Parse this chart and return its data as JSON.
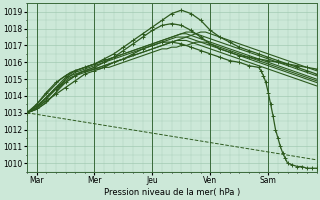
{
  "bg_color": "#cce8d8",
  "grid_color": "#99c4aa",
  "line_color": "#2d5a1e",
  "xlabel": "Pression niveau de la mer( hPa )",
  "ylim": [
    1009.5,
    1019.5
  ],
  "yticks": [
    1010,
    1011,
    1012,
    1013,
    1014,
    1015,
    1016,
    1017,
    1018,
    1019
  ],
  "xlim": [
    0,
    120
  ],
  "xtick_labels": [
    "Mar",
    "Mer",
    "Jeu",
    "Ven",
    "Sam"
  ],
  "xtick_positions": [
    4,
    28,
    52,
    76,
    100
  ],
  "vlines": [
    4,
    28,
    52,
    76,
    100
  ],
  "series": [
    {
      "x": [
        0,
        2,
        4,
        6,
        8,
        10,
        12,
        14,
        16,
        18,
        20,
        22,
        24,
        26,
        28,
        30,
        32,
        34,
        36,
        38,
        40,
        42,
        44,
        46,
        48,
        50,
        52,
        54,
        56,
        58,
        60,
        62,
        64,
        66,
        68,
        70,
        72,
        74,
        76,
        78,
        80,
        82,
        84,
        86,
        88,
        90,
        92,
        94,
        96,
        98,
        100,
        102,
        104,
        106,
        108,
        110,
        112,
        114,
        116,
        118,
        120
      ],
      "y": [
        1013.0,
        1013.1,
        1013.2,
        1013.4,
        1013.6,
        1013.9,
        1014.2,
        1014.5,
        1014.8,
        1015.0,
        1015.2,
        1015.4,
        1015.5,
        1015.6,
        1015.6,
        1015.7,
        1015.8,
        1015.9,
        1016.0,
        1016.1,
        1016.2,
        1016.3,
        1016.4,
        1016.5,
        1016.6,
        1016.7,
        1016.8,
        1016.9,
        1017.0,
        1017.1,
        1017.2,
        1017.3,
        1017.3,
        1017.3,
        1017.2,
        1017.1,
        1017.0,
        1016.9,
        1016.8,
        1016.7,
        1016.6,
        1016.5,
        1016.4,
        1016.3,
        1016.2,
        1016.1,
        1016.0,
        1015.9,
        1015.8,
        1015.7,
        1015.6,
        1015.5,
        1015.4,
        1015.3,
        1015.2,
        1015.1,
        1015.0,
        1014.9,
        1014.8,
        1014.7,
        1014.6
      ],
      "marker": false,
      "lw": 0.8
    },
    {
      "x": [
        0,
        2,
        4,
        6,
        8,
        10,
        12,
        14,
        16,
        18,
        20,
        22,
        24,
        26,
        28,
        30,
        32,
        34,
        36,
        38,
        40,
        42,
        44,
        46,
        48,
        50,
        52,
        54,
        56,
        58,
        60,
        62,
        64,
        66,
        68,
        70,
        72,
        74,
        76,
        78,
        80,
        82,
        84,
        86,
        88,
        90,
        92,
        94,
        96,
        98,
        100,
        102,
        104,
        106,
        108,
        110,
        112,
        114,
        116,
        118,
        120
      ],
      "y": [
        1013.0,
        1013.1,
        1013.2,
        1013.4,
        1013.6,
        1013.9,
        1014.2,
        1014.6,
        1015.0,
        1015.2,
        1015.4,
        1015.5,
        1015.6,
        1015.7,
        1015.8,
        1015.9,
        1016.0,
        1016.1,
        1016.2,
        1016.3,
        1016.4,
        1016.5,
        1016.6,
        1016.7,
        1016.8,
        1016.9,
        1017.0,
        1017.1,
        1017.2,
        1017.3,
        1017.4,
        1017.5,
        1017.5,
        1017.5,
        1017.4,
        1017.3,
        1017.2,
        1017.1,
        1017.0,
        1016.9,
        1016.8,
        1016.7,
        1016.6,
        1016.5,
        1016.4,
        1016.3,
        1016.2,
        1016.1,
        1016.0,
        1015.9,
        1015.8,
        1015.7,
        1015.6,
        1015.5,
        1015.4,
        1015.3,
        1015.2,
        1015.1,
        1015.0,
        1014.9,
        1014.8
      ],
      "marker": false,
      "lw": 0.8
    },
    {
      "x": [
        0,
        2,
        4,
        6,
        8,
        10,
        12,
        14,
        16,
        18,
        20,
        22,
        24,
        26,
        28,
        30,
        32,
        34,
        36,
        38,
        40,
        42,
        44,
        46,
        48,
        50,
        52,
        54,
        56,
        58,
        60,
        62,
        64,
        66,
        68,
        70,
        72,
        74,
        76,
        78,
        80,
        82,
        84,
        86,
        88,
        90,
        92,
        94,
        96,
        98,
        100,
        102,
        104,
        106,
        108,
        110,
        112,
        114,
        116,
        118,
        120
      ],
      "y": [
        1013.0,
        1013.2,
        1013.4,
        1013.6,
        1013.9,
        1014.2,
        1014.5,
        1014.8,
        1015.1,
        1015.3,
        1015.5,
        1015.6,
        1015.7,
        1015.8,
        1015.9,
        1016.0,
        1016.1,
        1016.2,
        1016.3,
        1016.4,
        1016.5,
        1016.6,
        1016.7,
        1016.8,
        1016.9,
        1017.0,
        1017.1,
        1017.2,
        1017.3,
        1017.4,
        1017.5,
        1017.6,
        1017.7,
        1017.7,
        1017.6,
        1017.5,
        1017.4,
        1017.3,
        1017.2,
        1017.1,
        1017.0,
        1016.9,
        1016.8,
        1016.7,
        1016.6,
        1016.5,
        1016.4,
        1016.3,
        1016.2,
        1016.1,
        1016.0,
        1015.9,
        1015.8,
        1015.7,
        1015.6,
        1015.5,
        1015.4,
        1015.3,
        1015.2,
        1015.1,
        1015.0
      ],
      "marker": false,
      "lw": 0.8
    },
    {
      "x": [
        0,
        2,
        4,
        6,
        8,
        10,
        12,
        14,
        16,
        18,
        20,
        22,
        24,
        26,
        28,
        30,
        32,
        34,
        36,
        38,
        40,
        42,
        44,
        46,
        48,
        50,
        52,
        54,
        56,
        58,
        60,
        62,
        64,
        66,
        68,
        70,
        72,
        74,
        76,
        78,
        80,
        82,
        84,
        86,
        88,
        90,
        92,
        94,
        96,
        98,
        100,
        102,
        104,
        106,
        108,
        110,
        112,
        114,
        116,
        118,
        120
      ],
      "y": [
        1013.0,
        1013.2,
        1013.5,
        1013.8,
        1014.1,
        1014.4,
        1014.7,
        1015.0,
        1015.2,
        1015.4,
        1015.5,
        1015.6,
        1015.7,
        1015.8,
        1015.9,
        1016.0,
        1016.1,
        1016.2,
        1016.3,
        1016.4,
        1016.5,
        1016.6,
        1016.7,
        1016.8,
        1016.9,
        1017.0,
        1017.1,
        1017.2,
        1017.3,
        1017.4,
        1017.5,
        1017.6,
        1017.7,
        1017.8,
        1017.8,
        1017.7,
        1017.6,
        1017.5,
        1017.4,
        1017.3,
        1017.2,
        1017.1,
        1017.0,
        1016.9,
        1016.8,
        1016.7,
        1016.6,
        1016.5,
        1016.4,
        1016.3,
        1016.2,
        1016.1,
        1016.0,
        1015.9,
        1015.8,
        1015.7,
        1015.6,
        1015.5,
        1015.4,
        1015.3,
        1015.2
      ],
      "marker": false,
      "lw": 0.8
    },
    {
      "x": [
        0,
        2,
        4,
        6,
        8,
        10,
        12,
        14,
        16,
        18,
        20,
        22,
        24,
        26,
        28,
        30,
        32,
        34,
        36,
        38,
        40,
        42,
        44,
        46,
        48,
        50,
        52,
        54,
        56,
        58,
        60,
        62,
        64,
        66,
        68,
        70,
        72,
        74,
        76,
        78,
        80,
        82,
        84,
        86,
        88,
        90,
        92,
        94,
        96,
        98,
        100,
        102,
        104,
        106,
        108,
        110,
        112,
        114,
        116,
        118,
        120
      ],
      "y": [
        1013.0,
        1013.1,
        1013.3,
        1013.6,
        1013.9,
        1014.2,
        1014.5,
        1014.7,
        1014.9,
        1015.1,
        1015.2,
        1015.3,
        1015.4,
        1015.5,
        1015.6,
        1015.7,
        1015.8,
        1015.9,
        1016.0,
        1016.1,
        1016.2,
        1016.3,
        1016.4,
        1016.5,
        1016.6,
        1016.7,
        1016.8,
        1016.9,
        1017.0,
        1017.1,
        1017.2,
        1017.3,
        1017.4,
        1017.5,
        1017.6,
        1017.7,
        1017.8,
        1017.8,
        1017.7,
        1017.6,
        1017.5,
        1017.4,
        1017.3,
        1017.2,
        1017.1,
        1017.0,
        1016.9,
        1016.8,
        1016.7,
        1016.6,
        1016.5,
        1016.4,
        1016.3,
        1016.2,
        1016.1,
        1016.0,
        1015.9,
        1015.8,
        1015.7,
        1015.6,
        1015.5
      ],
      "marker": false,
      "lw": 0.8
    },
    {
      "x": [
        0,
        2,
        4,
        6,
        8,
        10,
        12,
        14,
        16,
        18,
        20,
        22,
        24,
        26,
        28,
        30,
        32,
        34,
        36,
        38,
        40,
        42,
        44,
        46,
        48,
        50,
        52,
        54,
        56,
        58,
        60,
        62,
        64,
        66,
        68,
        70,
        72,
        74,
        76,
        78,
        80,
        82,
        84,
        86,
        88,
        90,
        92,
        94,
        96,
        98,
        100,
        102,
        104,
        106,
        108,
        110,
        112,
        114,
        116,
        118,
        120
      ],
      "y": [
        1013.0,
        1013.1,
        1013.3,
        1013.5,
        1013.8,
        1014.1,
        1014.4,
        1014.7,
        1015.0,
        1015.2,
        1015.3,
        1015.4,
        1015.5,
        1015.5,
        1015.6,
        1015.6,
        1015.7,
        1015.7,
        1015.8,
        1015.9,
        1016.0,
        1016.1,
        1016.2,
        1016.3,
        1016.4,
        1016.5,
        1016.6,
        1016.7,
        1016.8,
        1016.8,
        1016.9,
        1016.9,
        1017.0,
        1017.0,
        1017.1,
        1017.2,
        1017.2,
        1017.2,
        1017.1,
        1017.0,
        1016.9,
        1016.8,
        1016.7,
        1016.6,
        1016.5,
        1016.4,
        1016.3,
        1016.2,
        1016.1,
        1016.0,
        1015.9,
        1015.8,
        1015.7,
        1015.6,
        1015.5,
        1015.4,
        1015.3,
        1015.2,
        1015.1,
        1015.0,
        1014.9
      ],
      "marker": false,
      "lw": 0.8
    },
    {
      "x": [
        0,
        4,
        8,
        12,
        16,
        20,
        24,
        28,
        32,
        36,
        40,
        44,
        48,
        52,
        56,
        60,
        64,
        68,
        72,
        76,
        80,
        84,
        88,
        92,
        96,
        100,
        104,
        108,
        112,
        116,
        120
      ],
      "y": [
        1013.0,
        1013.5,
        1014.2,
        1014.8,
        1015.2,
        1015.5,
        1015.7,
        1015.9,
        1016.2,
        1016.5,
        1016.9,
        1017.3,
        1017.7,
        1018.1,
        1018.5,
        1018.9,
        1019.1,
        1018.9,
        1018.5,
        1017.9,
        1017.5,
        1017.2,
        1016.9,
        1016.7,
        1016.5,
        1016.3,
        1016.1,
        1015.9,
        1015.7,
        1015.5,
        1015.3
      ],
      "marker": true,
      "lw": 0.9
    },
    {
      "x": [
        0,
        4,
        8,
        12,
        16,
        20,
        24,
        28,
        32,
        36,
        40,
        44,
        48,
        52,
        56,
        60,
        64,
        68,
        72,
        76,
        80,
        84,
        88,
        92,
        96,
        100,
        104,
        108,
        112,
        116,
        120
      ],
      "y": [
        1013.0,
        1013.4,
        1013.9,
        1014.4,
        1014.8,
        1015.2,
        1015.5,
        1015.7,
        1016.0,
        1016.3,
        1016.7,
        1017.1,
        1017.5,
        1017.9,
        1018.2,
        1018.3,
        1018.2,
        1017.9,
        1017.5,
        1017.1,
        1016.8,
        1016.6,
        1016.4,
        1016.3,
        1016.2,
        1016.1,
        1016.0,
        1015.9,
        1015.8,
        1015.7,
        1015.6
      ],
      "marker": true,
      "lw": 0.9
    },
    {
      "x": [
        0,
        4,
        8,
        12,
        16,
        20,
        24,
        28,
        32,
        36,
        40,
        44,
        48,
        52,
        56,
        60,
        64,
        68,
        72,
        76,
        80,
        84,
        88,
        92,
        96,
        97,
        98,
        99,
        100,
        101,
        102,
        103,
        104,
        105,
        106,
        107,
        108,
        110,
        112,
        114,
        116,
        118,
        120
      ],
      "y": [
        1013.0,
        1013.3,
        1013.7,
        1014.1,
        1014.5,
        1014.9,
        1015.3,
        1015.5,
        1015.7,
        1016.0,
        1016.2,
        1016.5,
        1016.8,
        1017.0,
        1017.2,
        1017.2,
        1017.1,
        1016.9,
        1016.7,
        1016.5,
        1016.3,
        1016.1,
        1016.0,
        1015.8,
        1015.7,
        1015.5,
        1015.2,
        1014.8,
        1014.2,
        1013.5,
        1012.8,
        1012.0,
        1011.5,
        1011.0,
        1010.6,
        1010.3,
        1010.0,
        1009.9,
        1009.8,
        1009.8,
        1009.7,
        1009.7,
        1009.7
      ],
      "marker": true,
      "lw": 0.9
    },
    {
      "x": [
        0,
        120
      ],
      "y": [
        1013.0,
        1010.2
      ],
      "marker": false,
      "lw": 0.7,
      "dash": true
    }
  ]
}
